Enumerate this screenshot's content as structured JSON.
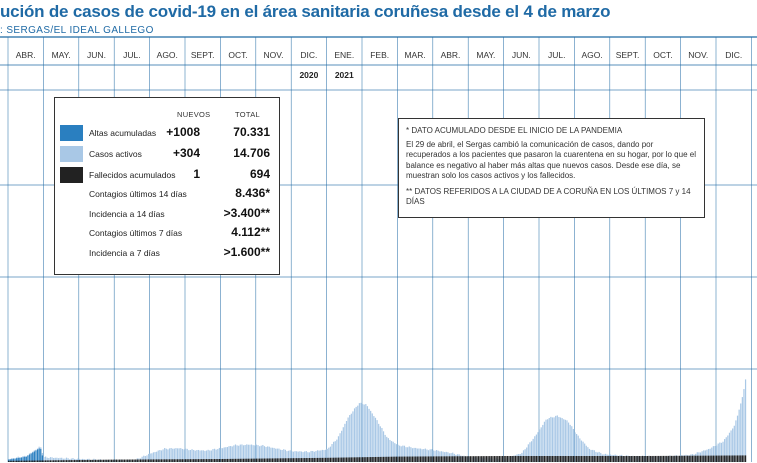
{
  "title": "ución de casos de covid-19 en el área sanitaria coruñesa desde el 4 de marzo",
  "source": ": SERGAS/EL IDEAL GALLEGO",
  "colors": {
    "altas": "#2a7fc0",
    "activos": "#a9c8e6",
    "fallecidos": "#222222",
    "title": "#1f6aa5",
    "grid": "#1f6aa5"
  },
  "legend": {
    "col_new": "NUEVOS",
    "col_total": "TOTAL",
    "rows": [
      {
        "label": "Altas acumuladas",
        "new": "+1008",
        "total": "70.331",
        "swatch": "altas"
      },
      {
        "label": "Casos activos",
        "new": "+304",
        "total": "14.706",
        "swatch": "activos"
      },
      {
        "label": "Fallecidos acumulados",
        "new": "1",
        "total": "694",
        "swatch": "fallecidos"
      },
      {
        "label": "Contagios últimos 14 días",
        "new": "",
        "total": "8.436*"
      },
      {
        "label": "Incidencia a 14 días",
        "new": "",
        "total": ">3.400**"
      },
      {
        "label": "Contagios últimos 7 días",
        "new": "",
        "total": "4.112**"
      },
      {
        "label": "Incidencia a 7 días",
        "new": "",
        "total": ">1.600**"
      }
    ]
  },
  "notes": {
    "n1": "* DATO ACUMULADO DESDE EL INICIO DE LA PANDEMIA",
    "n2": "El 29 de abril, el Sergas cambió la comunicación de casos, dando por recuperados a los pacientes que pasaron la cuarentena en su hogar, por lo que el balance es negativo al haber más altas que nuevos casos. Desde ese día, se muestran solo los casos activos y los fallecidos.",
    "n3": "** DATOS REFERIDOS A LA CIUDAD DE A CORUÑA EN LOS ÚLTIMOS 7 y 14 DÍAS"
  },
  "chart_data": {
    "type": "area",
    "months": [
      "ABR.",
      "MAY.",
      "JUN.",
      "JUL.",
      "AGO.",
      "SEPT.",
      "OCT.",
      "NOV.",
      "DIC.",
      "ENE.",
      "FEB.",
      "MAR.",
      "ABR.",
      "MAY.",
      "JUN.",
      "JUL.",
      "AGO.",
      "SEPT.",
      "OCT.",
      "NOV.",
      "DIC."
    ],
    "year_labels": [
      {
        "after_month": 8,
        "label": "2020"
      },
      {
        "after_month": 9,
        "label": "2021"
      }
    ],
    "series": [
      {
        "name": "Casos activos",
        "color_key": "activos",
        "points": [
          [
            0,
            0.5
          ],
          [
            0.5,
            1.0
          ],
          [
            0.9,
            2.6
          ],
          [
            1.0,
            0.8
          ],
          [
            2.0,
            0.5
          ],
          [
            3.0,
            0.3
          ],
          [
            3.6,
            0.4
          ],
          [
            4.0,
            1.4
          ],
          [
            4.4,
            2.2
          ],
          [
            4.8,
            2.3
          ],
          [
            5.2,
            2.0
          ],
          [
            5.6,
            1.9
          ],
          [
            6.0,
            2.3
          ],
          [
            6.4,
            2.8
          ],
          [
            6.8,
            2.9
          ],
          [
            7.2,
            2.7
          ],
          [
            7.6,
            2.2
          ],
          [
            8.0,
            1.8
          ],
          [
            8.5,
            1.7
          ],
          [
            9.0,
            2.1
          ],
          [
            9.3,
            4.0
          ],
          [
            9.6,
            7.5
          ],
          [
            9.9,
            9.8
          ],
          [
            10.1,
            9.6
          ],
          [
            10.4,
            7.0
          ],
          [
            10.7,
            4.0
          ],
          [
            11.0,
            2.8
          ],
          [
            11.5,
            2.3
          ],
          [
            12.0,
            2.0
          ],
          [
            12.5,
            1.5
          ],
          [
            13.0,
            0.8
          ],
          [
            14.0,
            0.5
          ],
          [
            14.5,
            1.5
          ],
          [
            14.9,
            4.5
          ],
          [
            15.2,
            7.2
          ],
          [
            15.5,
            7.7
          ],
          [
            15.8,
            6.8
          ],
          [
            16.1,
            4.2
          ],
          [
            16.4,
            2.2
          ],
          [
            16.8,
            1.3
          ],
          [
            17.5,
            1.0
          ],
          [
            18.5,
            0.9
          ],
          [
            19.3,
            1.2
          ],
          [
            19.8,
            2.2
          ],
          [
            20.2,
            3.5
          ],
          [
            20.5,
            6.0
          ],
          [
            20.7,
            10.0
          ],
          [
            20.85,
            14.7
          ]
        ]
      },
      {
        "name": "Altas acumuladas",
        "color_key": "altas",
        "points": [
          [
            0,
            0.4
          ],
          [
            0.5,
            0.9
          ],
          [
            0.9,
            2.4
          ],
          [
            1.0,
            0.0
          ]
        ]
      },
      {
        "name": "Fallecidos acumulados",
        "color_key": "fallecidos",
        "points": [
          [
            0,
            0.2
          ],
          [
            3.0,
            0.4
          ],
          [
            6.0,
            0.5
          ],
          [
            9.0,
            0.7
          ],
          [
            11.0,
            0.9
          ],
          [
            14.0,
            1.0
          ],
          [
            18.0,
            1.0
          ],
          [
            20.85,
            1.1
          ]
        ]
      }
    ],
    "ylim": [
      0,
      16
    ]
  }
}
